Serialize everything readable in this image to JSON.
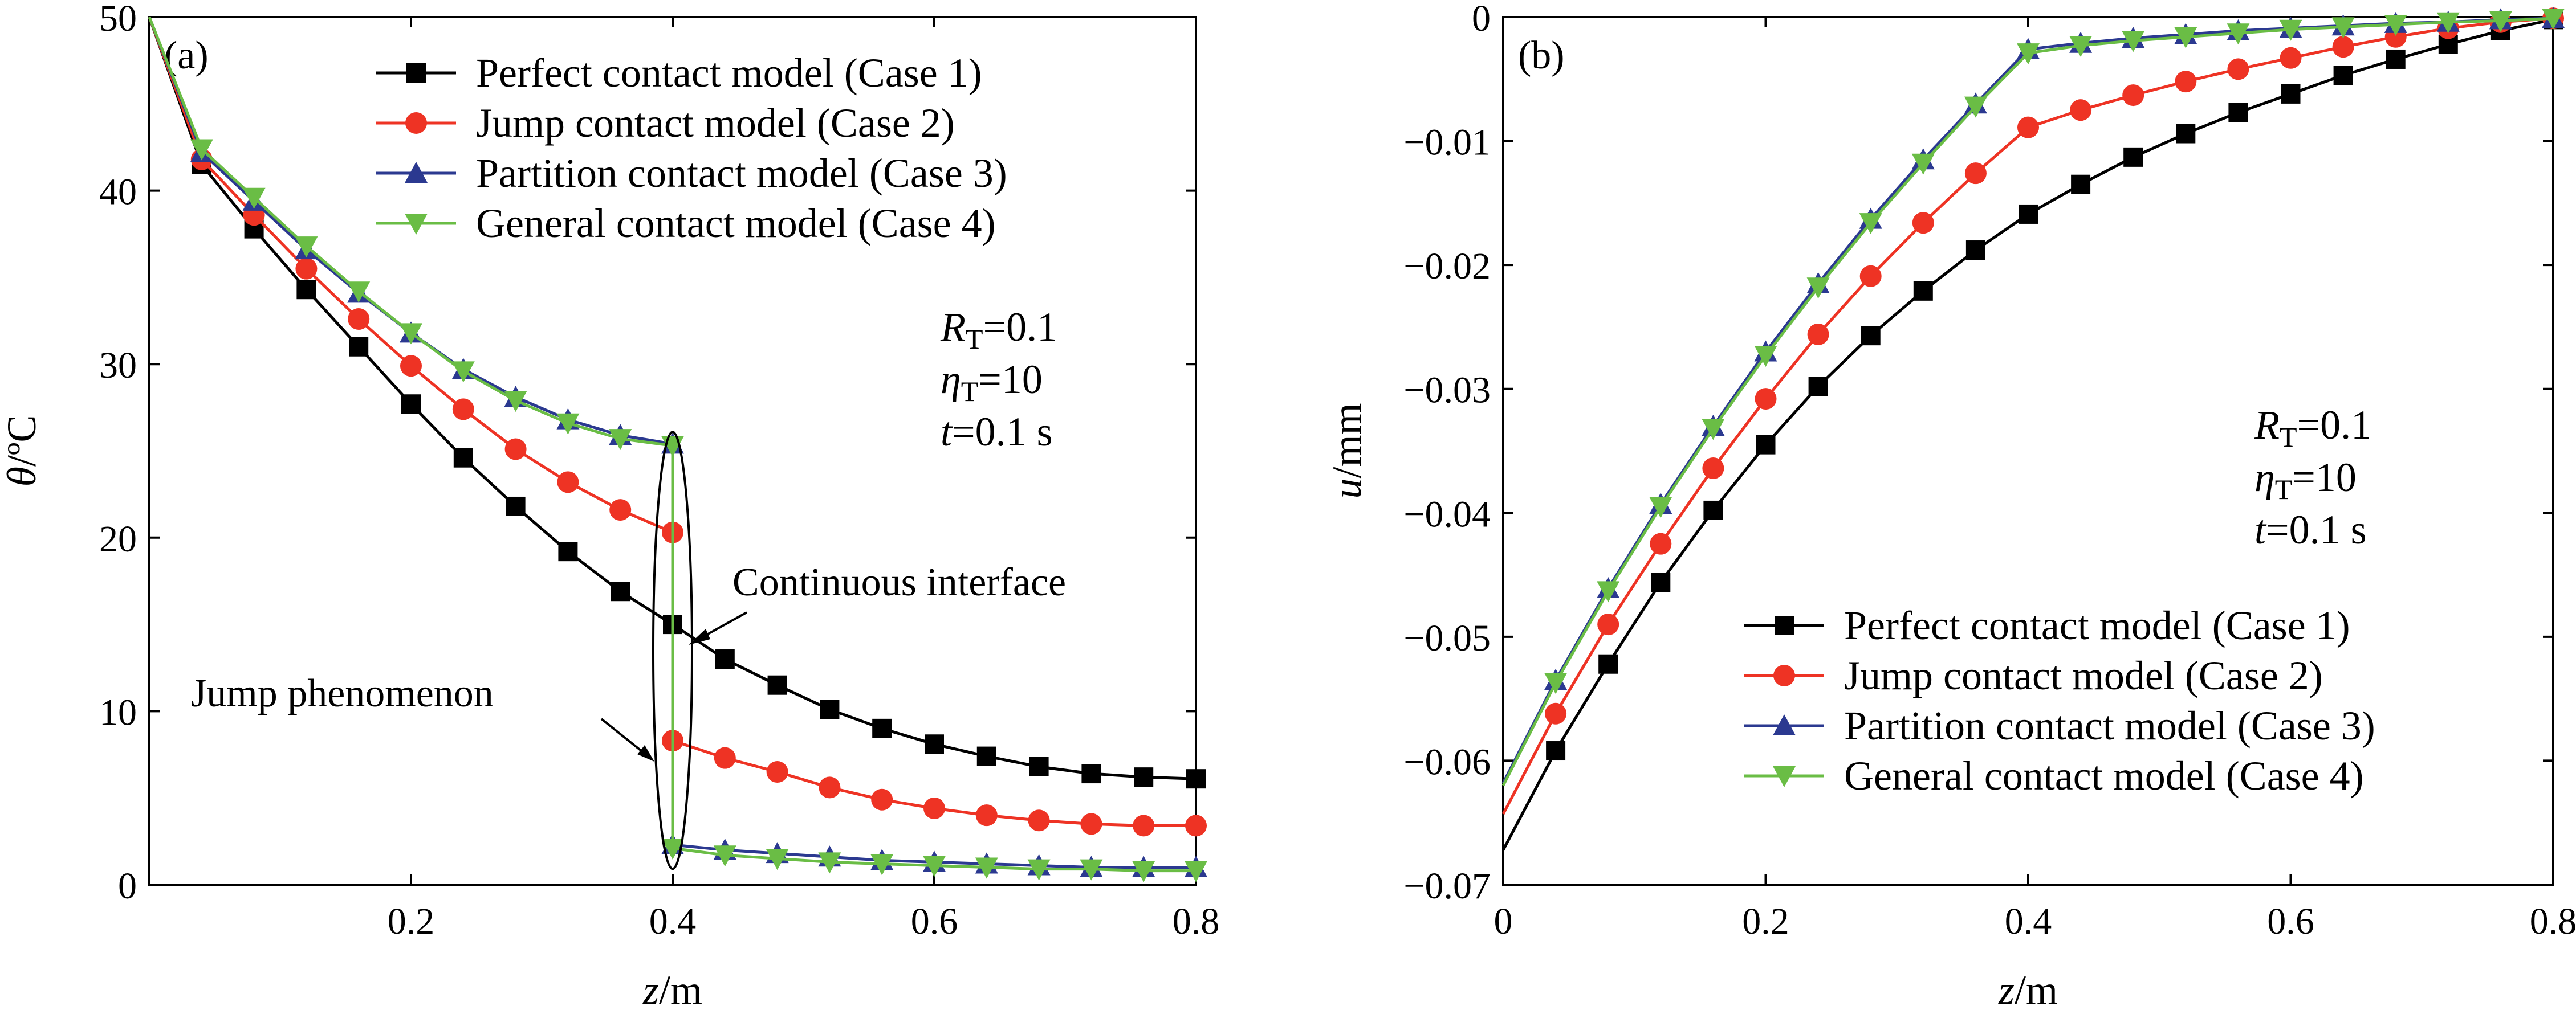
{
  "chart_data": [
    {
      "type": "line",
      "panel": "(a)",
      "xlabel": "z/m",
      "ylabel": "θ/ºC",
      "xlim": [
        0,
        0.8
      ],
      "ylim": [
        0,
        50
      ],
      "xticks": [
        0.2,
        0.4,
        0.6,
        0.8
      ],
      "yticks": [
        0,
        10,
        20,
        30,
        40,
        50
      ],
      "legend_position": "top-right",
      "params": [
        "R_T=0.1",
        "η_T=10",
        "t=0.1 s"
      ],
      "annotations": [
        "Continuous interface",
        "Jump phenomenon"
      ],
      "series": [
        {
          "name": "Perfect contact model (Case 1)",
          "color": "#000000",
          "marker": "square",
          "x": [
            0,
            0.04,
            0.08,
            0.12,
            0.16,
            0.2,
            0.24,
            0.28,
            0.32,
            0.36,
            0.4,
            0.44,
            0.48,
            0.52,
            0.56,
            0.6,
            0.64,
            0.68,
            0.72,
            0.76,
            0.8
          ],
          "y": [
            50,
            41.5,
            37.8,
            34.3,
            31.0,
            27.7,
            24.6,
            21.8,
            19.2,
            16.9,
            15.0,
            13.0,
            11.5,
            10.1,
            9.0,
            8.1,
            7.4,
            6.8,
            6.4,
            6.2,
            6.1
          ]
        },
        {
          "name": "Jump contact model (Case 2)",
          "color": "#ee3324",
          "marker": "circle",
          "x": [
            0,
            0.04,
            0.08,
            0.12,
            0.16,
            0.2,
            0.24,
            0.28,
            0.32,
            0.36,
            0.4,
            0.4,
            0.44,
            0.48,
            0.52,
            0.56,
            0.6,
            0.64,
            0.68,
            0.72,
            0.76,
            0.8
          ],
          "y": [
            50,
            41.8,
            38.6,
            35.5,
            32.6,
            29.9,
            27.4,
            25.1,
            23.2,
            21.6,
            20.3,
            8.3,
            7.3,
            6.5,
            5.6,
            4.9,
            4.4,
            4.0,
            3.7,
            3.5,
            3.4,
            3.4
          ]
        },
        {
          "name": "Partition contact model (Case 3)",
          "color": "#2b3990",
          "marker": "triangle-up",
          "x": [
            0,
            0.04,
            0.08,
            0.12,
            0.16,
            0.2,
            0.24,
            0.28,
            0.32,
            0.36,
            0.4,
            0.4,
            0.44,
            0.48,
            0.52,
            0.56,
            0.6,
            0.64,
            0.68,
            0.72,
            0.76,
            0.8
          ],
          "y": [
            50,
            42.2,
            39.4,
            36.6,
            34.1,
            31.8,
            29.7,
            28.1,
            26.8,
            25.9,
            25.4,
            2.3,
            2.0,
            1.8,
            1.6,
            1.4,
            1.3,
            1.2,
            1.1,
            1.0,
            1.0,
            1.0
          ]
        },
        {
          "name": "General contact model (Case 4)",
          "color": "#6abd45",
          "marker": "triangle-down",
          "x": [
            0,
            0.04,
            0.08,
            0.12,
            0.16,
            0.2,
            0.24,
            0.28,
            0.32,
            0.36,
            0.4,
            0.4,
            0.44,
            0.48,
            0.52,
            0.56,
            0.6,
            0.64,
            0.68,
            0.72,
            0.76,
            0.8
          ],
          "y": [
            50,
            42.4,
            39.6,
            36.8,
            34.2,
            31.8,
            29.6,
            27.9,
            26.6,
            25.7,
            25.3,
            2.1,
            1.7,
            1.5,
            1.3,
            1.2,
            1.1,
            1.0,
            0.9,
            0.9,
            0.8,
            0.8
          ]
        }
      ]
    },
    {
      "type": "line",
      "panel": "(b)",
      "xlabel": "z/m",
      "ylabel": "u/mm",
      "xlim": [
        0,
        0.8
      ],
      "ylim": [
        -0.07,
        0
      ],
      "xticks": [
        0,
        0.2,
        0.4,
        0.6,
        0.8
      ],
      "yticks": [
        0,
        -0.01,
        -0.02,
        -0.03,
        -0.04,
        -0.05,
        -0.06,
        -0.07
      ],
      "legend_position": "bottom-right",
      "params": [
        "R_T=0.1",
        "η_T=10",
        "t=0.1 s"
      ],
      "series": [
        {
          "name": "Perfect contact model (Case 1)",
          "color": "#000000",
          "marker": "square",
          "x": [
            0,
            0.04,
            0.08,
            0.12,
            0.16,
            0.2,
            0.24,
            0.28,
            0.32,
            0.36,
            0.4,
            0.44,
            0.48,
            0.52,
            0.56,
            0.6,
            0.64,
            0.68,
            0.72,
            0.76,
            0.8
          ],
          "y": [
            -0.0672,
            -0.0592,
            -0.0522,
            -0.0456,
            -0.0398,
            -0.0345,
            -0.0298,
            -0.0257,
            -0.0221,
            -0.0188,
            -0.0159,
            -0.0135,
            -0.0113,
            -0.0094,
            -0.0077,
            -0.0062,
            -0.0047,
            -0.0034,
            -0.0022,
            -0.0011,
            -0.0002
          ]
        },
        {
          "name": "Jump contact model (Case 2)",
          "color": "#ee3324",
          "marker": "circle",
          "x": [
            0,
            0.04,
            0.08,
            0.12,
            0.16,
            0.2,
            0.24,
            0.28,
            0.32,
            0.36,
            0.4,
            0.44,
            0.48,
            0.52,
            0.56,
            0.6,
            0.64,
            0.68,
            0.72,
            0.76,
            0.8
          ],
          "y": [
            -0.0643,
            -0.0562,
            -0.049,
            -0.0425,
            -0.0364,
            -0.0308,
            -0.0256,
            -0.0209,
            -0.0166,
            -0.0126,
            -0.0089,
            -0.0075,
            -0.0063,
            -0.0052,
            -0.0042,
            -0.0033,
            -0.0024,
            -0.0016,
            -0.0009,
            -0.0004,
            -0.0001
          ]
        },
        {
          "name": "Partition contact model (Case 3)",
          "color": "#2b3990",
          "marker": "triangle-up",
          "x": [
            0,
            0.04,
            0.08,
            0.12,
            0.16,
            0.2,
            0.24,
            0.28,
            0.32,
            0.36,
            0.4,
            0.44,
            0.48,
            0.52,
            0.56,
            0.6,
            0.64,
            0.68,
            0.72,
            0.76,
            0.8
          ],
          "y": [
            -0.0618,
            -0.0535,
            -0.0461,
            -0.0393,
            -0.033,
            -0.027,
            -0.0215,
            -0.0163,
            -0.0115,
            -0.007,
            -0.0026,
            -0.0021,
            -0.0017,
            -0.0014,
            -0.0011,
            -0.0009,
            -0.0007,
            -0.0005,
            -0.0004,
            -0.0002,
            -0.0001
          ]
        },
        {
          "name": "General contact model (Case 4)",
          "color": "#6abd45",
          "marker": "triangle-down",
          "x": [
            0,
            0.04,
            0.08,
            0.12,
            0.16,
            0.2,
            0.24,
            0.28,
            0.32,
            0.36,
            0.4,
            0.44,
            0.48,
            0.52,
            0.56,
            0.6,
            0.64,
            0.68,
            0.72,
            0.76,
            0.8
          ],
          "y": [
            -0.062,
            -0.0537,
            -0.0463,
            -0.0395,
            -0.0332,
            -0.0273,
            -0.0218,
            -0.0166,
            -0.0118,
            -0.0072,
            -0.0029,
            -0.0023,
            -0.0019,
            -0.0016,
            -0.0013,
            -0.001,
            -0.0008,
            -0.0006,
            -0.0004,
            -0.0003,
            -0.0001
          ]
        }
      ]
    }
  ]
}
